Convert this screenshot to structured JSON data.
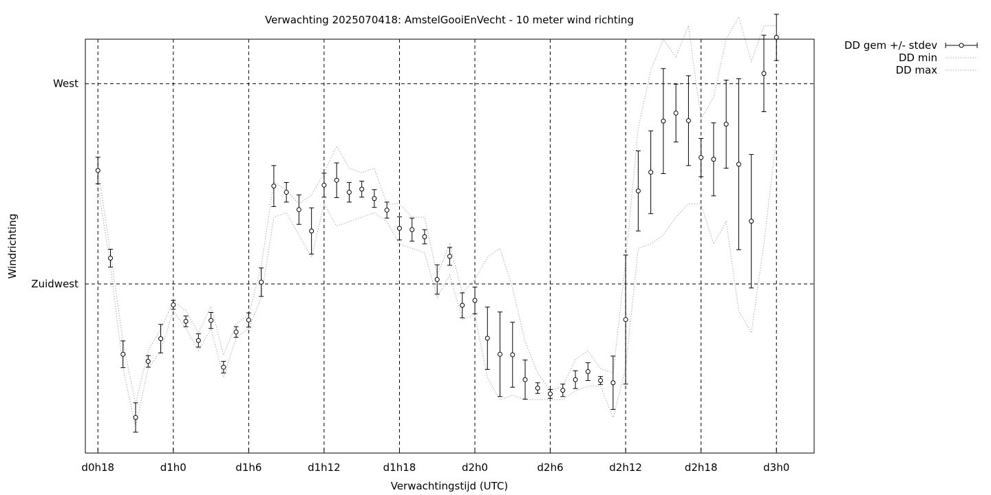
{
  "chart_data": {
    "type": "errorbar-line",
    "title": "Verwachting 2025070418: AmstelGooiEnVecht - 10 meter wind richting",
    "xlabel": "Verwachtingstijd (UTC)",
    "ylabel": "Windrichting",
    "xlim": [
      -1,
      57
    ],
    "ylim": [
      187,
      280
    ],
    "x_ticks": [
      {
        "x": 0,
        "label": "d0h18"
      },
      {
        "x": 6,
        "label": "d1h0"
      },
      {
        "x": 12,
        "label": "d1h6"
      },
      {
        "x": 18,
        "label": "d1h12"
      },
      {
        "x": 24,
        "label": "d1h18"
      },
      {
        "x": 30,
        "label": "d2h0"
      },
      {
        "x": 36,
        "label": "d2h6"
      },
      {
        "x": 42,
        "label": "d2h12"
      },
      {
        "x": 48,
        "label": "d2h18"
      },
      {
        "x": 54,
        "label": "d3h0"
      }
    ],
    "y_ticks": [
      {
        "y": 225,
        "label": "Zuidwest"
      },
      {
        "y": 270,
        "label": "West"
      }
    ],
    "grid": true,
    "legend_position": "outside-top-right",
    "legend": [
      {
        "label": "DD gem +/- stdev",
        "style": "errorbar"
      },
      {
        "label": "DD min",
        "style": "dotted"
      },
      {
        "label": "DD max",
        "style": "dotted"
      }
    ],
    "series": [
      {
        "name": "DD gem +/- stdev",
        "x": [
          0,
          1,
          2,
          3,
          4,
          5,
          6,
          7,
          8,
          9,
          10,
          11,
          12,
          13,
          14,
          15,
          16,
          17,
          18,
          19,
          20,
          21,
          22,
          23,
          24,
          25,
          26,
          27,
          28,
          29,
          30,
          31,
          32,
          33,
          34,
          35,
          36,
          37,
          38,
          39,
          40,
          41,
          42,
          43,
          44,
          45,
          46,
          47,
          48,
          49,
          50,
          51,
          52,
          53,
          54
        ],
        "mean": [
          250.5,
          230.8,
          209.2,
          195.0,
          207.6,
          212.7,
          220.3,
          216.6,
          212.3,
          216.8,
          206.3,
          214.2,
          216.9,
          225.4,
          247.0,
          245.6,
          241.7,
          236.9,
          247.2,
          248.3,
          245.6,
          246.3,
          244.2,
          241.6,
          237.5,
          237.2,
          235.6,
          226.0,
          231.2,
          220.2,
          221.3,
          212.8,
          209.2,
          209.1,
          203.5,
          201.6,
          200.3,
          201.1,
          203.5,
          205.3,
          203.3,
          202.8,
          217.0,
          245.9,
          250.1,
          261.6,
          263.4,
          261.7,
          253.4,
          253.0,
          260.9,
          251.9,
          239.1,
          272.3,
          280.4
        ],
        "sd": [
          3.0,
          2.0,
          3.0,
          3.3,
          1.3,
          3.2,
          1.0,
          1.2,
          1.5,
          1.8,
          1.3,
          1.2,
          1.6,
          3.2,
          4.6,
          2.2,
          3.3,
          5.2,
          2.7,
          3.9,
          2.2,
          1.8,
          2.0,
          1.8,
          2.6,
          2.6,
          1.6,
          3.3,
          2.0,
          2.8,
          3.0,
          7.0,
          9.5,
          7.3,
          4.4,
          1.2,
          1.0,
          1.4,
          2.0,
          2.0,
          0.9,
          6.0,
          14.5,
          9.0,
          9.3,
          11.8,
          6.5,
          10.1,
          4.3,
          8.2,
          9.9,
          19.2,
          15.0,
          8.6,
          5.2
        ]
      },
      {
        "name": "DD min",
        "x": [
          0,
          1,
          2,
          3,
          4,
          5,
          6,
          7,
          8,
          9,
          10,
          11,
          12,
          13,
          14,
          15,
          16,
          17,
          18,
          19,
          20,
          21,
          22,
          23,
          24,
          25,
          26,
          27,
          28,
          29,
          30,
          31,
          32,
          33,
          34,
          35,
          36,
          37,
          38,
          39,
          40,
          41,
          42,
          43,
          44,
          45,
          46,
          47,
          48,
          49,
          50,
          51,
          52,
          53,
          54
        ],
        "values": [
          247,
          229,
          206,
          193,
          206,
          210,
          219,
          215,
          210,
          215,
          204,
          213,
          215,
          222,
          240,
          241,
          236,
          231,
          243,
          238,
          239,
          240,
          241,
          239,
          234,
          233,
          232,
          222,
          227,
          217,
          218,
          204,
          199,
          200,
          199,
          199,
          199,
          199,
          201,
          202,
          202,
          195,
          206,
          233,
          234,
          236,
          240,
          243,
          243,
          234,
          239,
          219,
          214,
          234,
          258
        ]
      },
      {
        "name": "DD max",
        "x": [
          0,
          1,
          2,
          3,
          4,
          5,
          6,
          7,
          8,
          9,
          10,
          11,
          12,
          13,
          14,
          15,
          16,
          17,
          18,
          19,
          20,
          21,
          22,
          23,
          24,
          25,
          26,
          27,
          28,
          29,
          30,
          31,
          32,
          33,
          34,
          35,
          36,
          37,
          38,
          39,
          40,
          41,
          42,
          43,
          44,
          45,
          46,
          47,
          48,
          49,
          50,
          51,
          52,
          53,
          54
        ],
        "values": [
          251,
          232,
          212,
          198,
          210,
          215,
          221,
          219,
          214,
          220,
          209,
          216,
          218,
          229,
          248,
          246,
          243,
          245,
          250,
          256,
          251,
          250,
          251,
          243,
          243,
          240,
          240,
          227,
          234,
          223,
          226,
          231,
          233,
          224,
          212,
          205,
          201,
          202,
          208,
          210,
          206,
          205,
          230,
          260,
          273,
          280,
          276,
          283,
          262,
          267,
          280,
          285,
          275,
          283,
          283
        ]
      }
    ]
  }
}
